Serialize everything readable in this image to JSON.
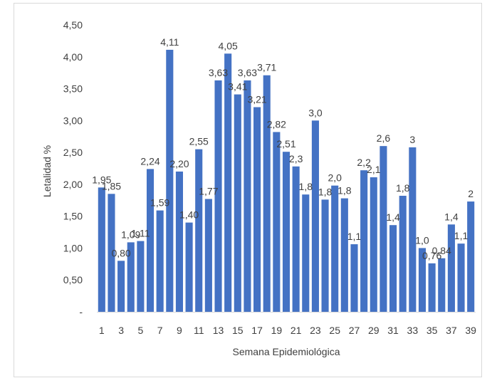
{
  "chart_data": {
    "type": "bar",
    "xlabel": "Semana Epidemiológica",
    "ylabel": "Letalidad %",
    "ylim": [
      0,
      4.5
    ],
    "grid": false,
    "legend": "none",
    "bar_color": "#4472c4",
    "y_ticks": [
      "-",
      "0,50",
      "1,00",
      "1,50",
      "2,00",
      "2,50",
      "3,00",
      "3,50",
      "4,00",
      "4,50"
    ],
    "x_ticks": [
      "1",
      "3",
      "5",
      "7",
      "9",
      "11",
      "13",
      "15",
      "17",
      "19",
      "21",
      "23",
      "25",
      "27",
      "29",
      "31",
      "33",
      "35",
      "37",
      "39"
    ],
    "categories": [
      "1",
      "2",
      "3",
      "4",
      "5",
      "6",
      "7",
      "8",
      "9",
      "10",
      "11",
      "12",
      "13",
      "14",
      "15",
      "16",
      "17",
      "18",
      "19",
      "20",
      "21",
      "22",
      "23",
      "24",
      "25",
      "26",
      "27",
      "28",
      "29",
      "30",
      "31",
      "32",
      "33",
      "34",
      "35",
      "36",
      "37",
      "38",
      "39"
    ],
    "values": [
      1.95,
      1.85,
      0.8,
      1.09,
      1.11,
      2.24,
      1.59,
      4.11,
      2.2,
      1.4,
      2.55,
      1.77,
      3.63,
      4.05,
      3.41,
      3.63,
      3.21,
      3.71,
      2.82,
      2.51,
      2.28,
      1.84,
      3.0,
      1.76,
      1.98,
      1.78,
      1.06,
      2.22,
      2.11,
      2.6,
      1.36,
      1.82,
      2.58,
      1.0,
      0.76,
      0.84,
      1.37,
      1.07,
      1.73
    ],
    "data_labels": [
      "1,95",
      "1,85",
      "0,80",
      "1,09",
      "1,11",
      "2,24",
      "1,59",
      "4,11",
      "2,20",
      "1,40",
      "2,55",
      "1,77",
      "3,63",
      "4,05",
      "3,41",
      "3,63",
      "3,21",
      "3,71",
      "2,82",
      "2,51",
      "2,3",
      "1,8",
      "3,0",
      "1,8",
      "2,0",
      "1,8",
      "1,1",
      "2,2",
      "2,1",
      "2,6",
      "1,4",
      "1,8",
      "3",
      "1,0",
      "0,76",
      "0,84",
      "1,4",
      "1,1",
      "2"
    ]
  }
}
